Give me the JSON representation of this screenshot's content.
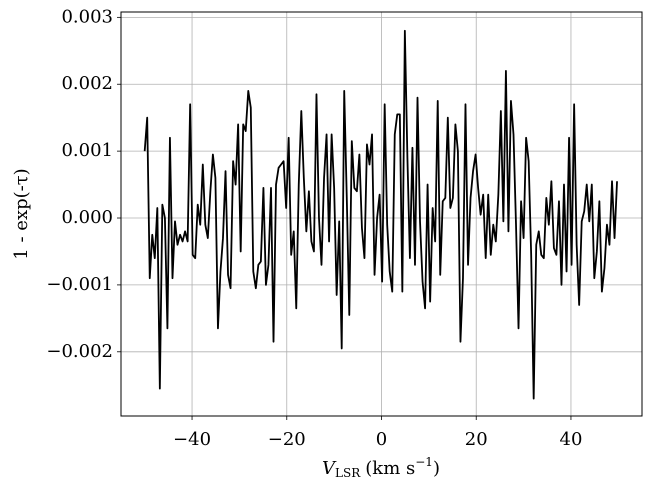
{
  "chart_data": {
    "type": "line",
    "y_label": "1 - exp(-τ)",
    "x_label": {
      "symbol": "V",
      "subscript": "LSR",
      "unit": "(km s",
      "exponent": "−1",
      "close": ")"
    },
    "color": "#000000",
    "grid": true,
    "xlim": [
      -55,
      55
    ],
    "ylim": [
      -0.00296,
      0.00308
    ],
    "xticks": [
      {
        "value": -40,
        "label": "−40"
      },
      {
        "value": -20,
        "label": "−20"
      },
      0,
      20,
      40
    ],
    "yticks": [
      {
        "value": -0.002,
        "label": "−0.002"
      },
      {
        "value": -0.001,
        "label": "−0.001"
      },
      {
        "value": 0,
        "label": "0.000"
      },
      {
        "value": 0.001,
        "label": "0.001"
      },
      {
        "value": 0.002,
        "label": "0.002"
      },
      {
        "value": 0.003,
        "label": "0.003"
      }
    ],
    "x": [
      -50,
      -49.47,
      -48.93,
      -48.4,
      -47.87,
      -47.33,
      -46.8,
      -46.27,
      -45.73,
      -45.2,
      -44.67,
      -44.13,
      -43.6,
      -43.07,
      -42.53,
      -42,
      -41.47,
      -40.93,
      -40.4,
      -39.87,
      -39.33,
      -38.8,
      -38.27,
      -37.73,
      -37.2,
      -36.67,
      -36.13,
      -35.6,
      -35.07,
      -34.53,
      -34,
      -33.47,
      -32.93,
      -32.4,
      -31.87,
      -31.33,
      -30.8,
      -30.27,
      -29.73,
      -29.2,
      -28.67,
      -28.13,
      -27.6,
      -27.07,
      -26.53,
      -26,
      -25.47,
      -24.93,
      -24.4,
      -23.87,
      -23.33,
      -22.8,
      -22.27,
      -21.73,
      -21.2,
      -20.67,
      -20.13,
      -19.6,
      -19.07,
      -18.53,
      -18,
      -17.47,
      -16.93,
      -16.4,
      -15.87,
      -15.33,
      -14.8,
      -14.27,
      -13.73,
      -13.2,
      -12.67,
      -12.13,
      -11.6,
      -11.07,
      -10.53,
      -10,
      -9.47,
      -8.93,
      -8.4,
      -7.87,
      -7.33,
      -6.8,
      -6.27,
      -5.73,
      -5.2,
      -4.67,
      -4.13,
      -3.6,
      -3.07,
      -2.53,
      -2,
      -1.47,
      -0.93,
      -0.4,
      0.13,
      0.67,
      1.2,
      1.73,
      2.27,
      2.8,
      3.33,
      3.87,
      4.4,
      4.93,
      5.47,
      6,
      6.53,
      7.07,
      7.6,
      8.13,
      8.67,
      9.2,
      9.73,
      10.27,
      10.8,
      11.33,
      11.87,
      12.4,
      12.93,
      13.47,
      14,
      14.53,
      15.07,
      15.6,
      16.13,
      16.67,
      17.2,
      17.73,
      18.27,
      18.8,
      19.33,
      19.87,
      20.4,
      20.93,
      21.47,
      22,
      22.53,
      23.07,
      23.6,
      24.13,
      24.67,
      25.2,
      25.73,
      26.27,
      26.8,
      27.33,
      27.87,
      28.4,
      28.93,
      29.47,
      30,
      30.53,
      31.07,
      31.6,
      32.13,
      32.67,
      33.2,
      33.73,
      34.27,
      34.8,
      35.33,
      35.87,
      36.4,
      36.93,
      37.47,
      38,
      38.53,
      39.07,
      39.6,
      40.13,
      40.67,
      41.2,
      41.73,
      42.27,
      42.8,
      43.33,
      43.87,
      44.4,
      44.93,
      45.47,
      46,
      46.53,
      47.07,
      47.6,
      48.13,
      48.67,
      49.2,
      49.73
    ],
    "values": [
      0.001,
      0.0015,
      -0.0009,
      -0.00025,
      -0.0006,
      0.00015,
      -0.00255,
      0.0002,
      0,
      -0.00165,
      0.0012,
      -0.0009,
      -5e-05,
      -0.0004,
      -0.00025,
      -0.00035,
      -0.0002,
      -0.00035,
      0.0017,
      -0.00055,
      -0.0006,
      0.0002,
      -0.0001,
      0.0008,
      -0.0001,
      -0.0003,
      0.0004,
      0.00095,
      0.0006,
      -0.00165,
      -0.0008,
      -0.0003,
      0.0007,
      -0.00085,
      -0.00105,
      0.00085,
      0.0005,
      0.0014,
      -0.0005,
      0.0014,
      0.0013,
      0.0019,
      0.00165,
      -0.0008,
      -0.00105,
      -0.0007,
      -0.00065,
      0.00045,
      -0.001,
      -0.0007,
      0.00045,
      -0.00185,
      0.0005,
      0.00075,
      0.0008,
      0.00085,
      0.00015,
      0.0012,
      -0.00055,
      -0.0002,
      -0.00135,
      0.0005,
      0.0016,
      0.0006,
      -0.0002,
      0.0004,
      -0.00035,
      -0.0005,
      0.00185,
      0,
      -0.0007,
      0.0006,
      0.00125,
      -0.00035,
      0.00125,
      0.00045,
      -0.00115,
      -5e-05,
      -0.00195,
      0.0019,
      0.0003,
      -0.00145,
      0.00115,
      0.00045,
      0.0004,
      0.00095,
      -0.00015,
      -0.0006,
      0.0011,
      0.0008,
      0.00125,
      -0.00085,
      0,
      0.00035,
      -0.00095,
      0.0017,
      -0.0001,
      -0.0008,
      -0.0011,
      0.00125,
      0.00155,
      0.00155,
      -0.0011,
      0.0028,
      0.0009,
      -0.0006,
      0.00105,
      -0.0007,
      0.0018,
      -5e-05,
      -0.00095,
      -0.00135,
      0.0005,
      -0.00125,
      0.00015,
      -0.00035,
      0.00175,
      -0.00085,
      0.00025,
      0.0003,
      0.0015,
      0.00015,
      0.0003,
      0.0014,
      0.001,
      -0.00185,
      -0.0009,
      0.0017,
      -0.0007,
      0.0003,
      0.0007,
      0.00095,
      0.00045,
      5e-05,
      0.00035,
      -0.0006,
      0.00035,
      -0.00055,
      -0.0001,
      -0.00035,
      0.00035,
      0.0016,
      -5e-05,
      0.0022,
      -0.0002,
      0.00175,
      0.00125,
      -0.0001,
      -0.00165,
      0.00025,
      -0.0003,
      0.0012,
      0.00085,
      -0.00055,
      -0.0027,
      -0.0004,
      -0.0002,
      -0.00055,
      -0.0006,
      0.0003,
      -0.0001,
      0.00055,
      -0.00045,
      -0.00055,
      0.00025,
      -0.001,
      0.0005,
      -0.0008,
      0.0012,
      -0.0007,
      0.0017,
      -0.0004,
      -0.0013,
      -5e-05,
      0.0001,
      0.0005,
      -5e-05,
      0.0005,
      -0.0009,
      -0.0005,
      0.00025,
      -0.0011,
      -0.00075,
      -0.0001,
      -0.0004,
      0.00055,
      -0.0003,
      0.00055
    ]
  }
}
